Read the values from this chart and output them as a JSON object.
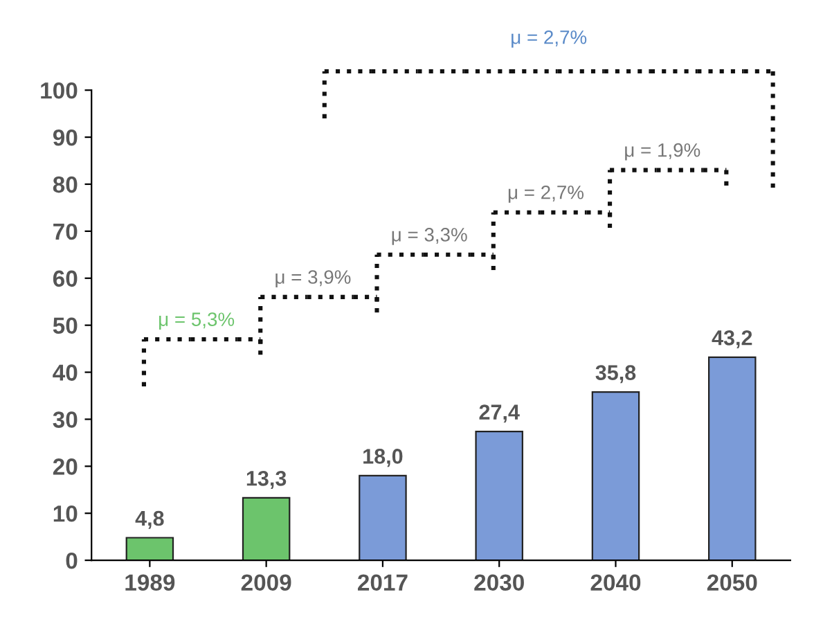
{
  "chart_data": {
    "type": "bar",
    "categories": [
      "1989",
      "2009",
      "2017",
      "2030",
      "2040",
      "2050"
    ],
    "values": [
      4.8,
      13.3,
      18.0,
      27.4,
      35.8,
      43.2
    ],
    "colors": [
      "#6cc46c",
      "#6cc46c",
      "#7b9bd8",
      "#7b9bd8",
      "#7b9bd8",
      "#7b9bd8"
    ],
    "value_labels": [
      "4,8",
      "13,3",
      "18,0",
      "27,4",
      "35,8",
      "43,2"
    ],
    "ylim": [
      0,
      100
    ],
    "yticks": [
      0,
      10,
      20,
      30,
      40,
      50,
      60,
      70,
      80,
      90,
      100
    ],
    "grid": false,
    "legend": false,
    "annotations": [
      "μ = 5,3%",
      "μ = 3,9%",
      "μ = 3,3%",
      "μ = 2,7%",
      "μ = 1,9%",
      "μ = 2,7%"
    ]
  }
}
